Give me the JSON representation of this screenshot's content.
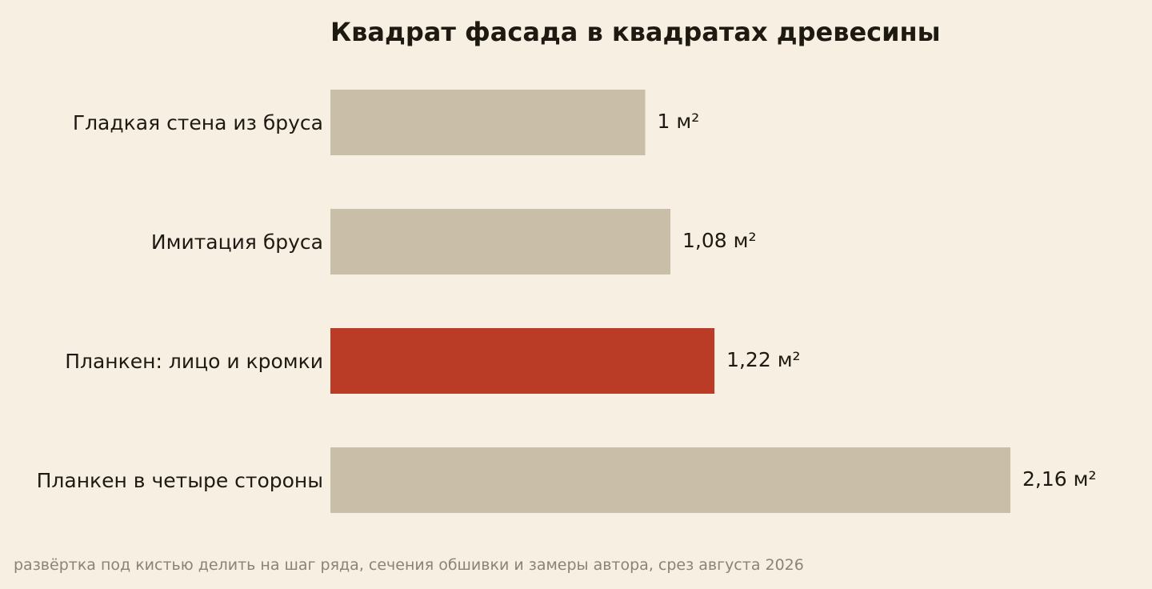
{
  "chart_data": {
    "type": "bar",
    "orientation": "horizontal",
    "title": "Квадрат фасада в квадратах древесины",
    "categories": [
      "Гладкая стена из бруса",
      "Имитация бруса",
      "Планкен: лицо и кромки",
      "Планкен в четыре стороны"
    ],
    "values": [
      1,
      1.08,
      1.22,
      2.16
    ],
    "value_labels": [
      "1 м²",
      "1,08 м²",
      "1,22 м²",
      "2,16 м²"
    ],
    "highlight_index": 2,
    "xlim": [
      0,
      2.16
    ],
    "grid": false,
    "colors": {
      "bar": "#c9bfa8",
      "highlight": "#bb3c26",
      "text": "#1e1a12",
      "background": "#f6efe2"
    }
  },
  "footnote": "развёртка под кистью делить на шаг ряда, сечения обшивки и замеры автора, срез августа 2026"
}
